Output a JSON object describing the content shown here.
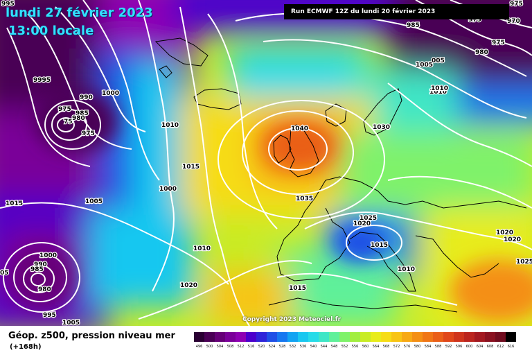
{
  "title_date": "lundi 27 février 2023",
  "title_time": "13:00 locale",
  "run_info": "Run ECMWF 12Z du lundi 20 février 2023",
  "copyright": "Copyright 2023 Meteociel.fr",
  "field_label": "Géop. z500, pression niveau mer",
  "lead_time": "(+168h)",
  "isobars": [
    {
      "id": "p1",
      "text": "995"
    },
    {
      "id": "p2",
      "text": "9995"
    },
    {
      "id": "p3",
      "text": "990"
    },
    {
      "id": "p4",
      "text": "1000"
    },
    {
      "id": "p5",
      "text": "975"
    },
    {
      "id": "p6",
      "text": "985"
    },
    {
      "id": "p7",
      "text": "980"
    },
    {
      "id": "p8",
      "text": "75"
    },
    {
      "id": "p9",
      "text": "975"
    },
    {
      "id": "p10",
      "text": "1010"
    },
    {
      "id": "p11",
      "text": "1015"
    },
    {
      "id": "p12",
      "text": "1000"
    },
    {
      "id": "p13",
      "text": "1005"
    },
    {
      "id": "p14",
      "text": "1015"
    },
    {
      "id": "p15",
      "text": "1010"
    },
    {
      "id": "p16",
      "text": "1020"
    },
    {
      "id": "p17",
      "text": "1000"
    },
    {
      "id": "p18",
      "text": "990"
    },
    {
      "id": "p19",
      "text": "985"
    },
    {
      "id": "p20",
      "text": "980"
    },
    {
      "id": "p21",
      "text": "05"
    },
    {
      "id": "p22",
      "text": "995"
    },
    {
      "id": "p23",
      "text": "1005"
    },
    {
      "id": "p24",
      "text": "1040"
    },
    {
      "id": "p25",
      "text": "1030"
    },
    {
      "id": "p26",
      "text": "1035"
    },
    {
      "id": "p27",
      "text": "1025"
    },
    {
      "id": "p28",
      "text": "1020"
    },
    {
      "id": "p29",
      "text": "1015"
    },
    {
      "id": "p30",
      "text": "1010"
    },
    {
      "id": "p31",
      "text": "1015"
    },
    {
      "id": "p32",
      "text": "1010"
    },
    {
      "id": "p33",
      "text": "1020"
    },
    {
      "id": "p34",
      "text": "1020"
    },
    {
      "id": "p35",
      "text": "1025"
    },
    {
      "id": "p36",
      "text": "985"
    },
    {
      "id": "p37",
      "text": "975"
    },
    {
      "id": "p38",
      "text": "970"
    },
    {
      "id": "p39",
      "text": "975"
    },
    {
      "id": "p40",
      "text": "980"
    },
    {
      "id": "p41",
      "text": "1005"
    },
    {
      "id": "p42",
      "text": "005"
    },
    {
      "id": "p43",
      "text": "1010"
    },
    {
      "id": "p44",
      "text": "975"
    }
  ],
  "legend": {
    "values": [
      "496",
      "500",
      "504",
      "508",
      "512",
      "516",
      "520",
      "524",
      "528",
      "532",
      "536",
      "540",
      "544",
      "548",
      "552",
      "556",
      "560",
      "564",
      "568",
      "572",
      "576",
      "580",
      "584",
      "588",
      "592",
      "596",
      "600",
      "604",
      "608",
      "612",
      "616"
    ],
    "colors": [
      "#2a0033",
      "#4a0055",
      "#660077",
      "#7a0099",
      "#8e00b3",
      "#4b00cc",
      "#2f24d9",
      "#1f4fe6",
      "#1677f0",
      "#12a3f2",
      "#19c7f0",
      "#27dbe8",
      "#3fe6c6",
      "#5ff09a",
      "#7ff26a",
      "#a2ee3f",
      "#c8ec25",
      "#e8ec1a",
      "#f6dc16",
      "#f8c414",
      "#f7a914",
      "#f48f14",
      "#f07616",
      "#ea5f18",
      "#e0471a",
      "#cf341c",
      "#bb241e",
      "#a31820",
      "#8a1120",
      "#700c1f",
      "#000000"
    ]
  },
  "colors": {
    "title": "#33e0ff",
    "isobar": "#ffffff"
  }
}
